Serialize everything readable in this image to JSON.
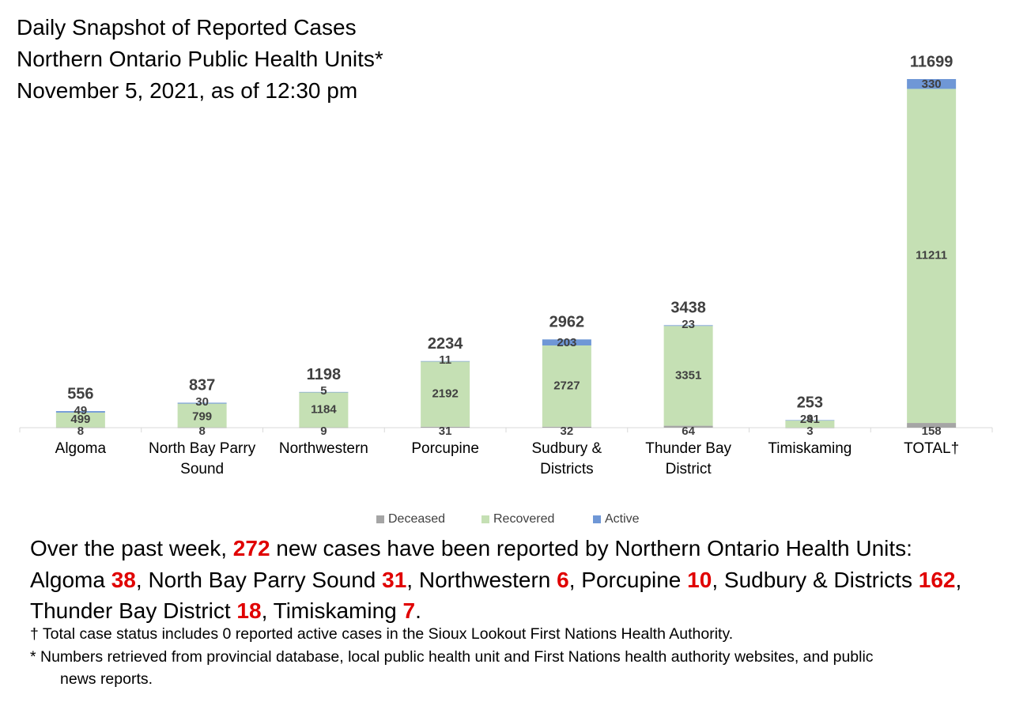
{
  "title": {
    "line1": "Daily Snapshot of Reported Cases",
    "line2": "Northern Ontario Public Health Units*",
    "line3": "November 5, 2021, as of 12:30 pm"
  },
  "chart_data": {
    "type": "bar",
    "stacked": true,
    "categories": [
      "Algoma",
      "North Bay Parry Sound",
      "Northwestern",
      "Porcupine",
      "Sudbury & Districts",
      "Thunder Bay District",
      "Timiskaming",
      "TOTAL†"
    ],
    "category_lines": [
      [
        "Algoma"
      ],
      [
        "North Bay Parry",
        "Sound"
      ],
      [
        "Northwestern"
      ],
      [
        "Porcupine"
      ],
      [
        "Sudbury &",
        "Districts"
      ],
      [
        "Thunder Bay",
        "District"
      ],
      [
        "Timiskaming"
      ],
      [
        "TOTAL†"
      ]
    ],
    "series": [
      {
        "name": "Deceased",
        "color": "#a5a5a5",
        "values": [
          8,
          8,
          9,
          31,
          32,
          64,
          3,
          158
        ]
      },
      {
        "name": "Recovered",
        "color": "#c5e0b4",
        "values": [
          499,
          799,
          1184,
          2192,
          2727,
          3351,
          241,
          11211
        ]
      },
      {
        "name": "Active",
        "color": "#6f97d6",
        "values": [
          49,
          30,
          5,
          11,
          203,
          23,
          9,
          330
        ]
      }
    ],
    "totals": [
      556,
      837,
      1198,
      2234,
      2962,
      3438,
      253,
      11699
    ],
    "legend_position": "bottom",
    "ylim": [
      0,
      11699
    ],
    "grid": false
  },
  "summary": {
    "intro": "Over the past week,",
    "total_new": "272",
    "after_total": "new cases have been reported by Northern Ontario Health Units:",
    "items": [
      {
        "name": "Algoma",
        "count": "38",
        "sep": ","
      },
      {
        "name": "North Bay Parry Sound",
        "count": "31",
        "sep": ","
      },
      {
        "name": "Northwestern",
        "count": "6",
        "sep": ","
      },
      {
        "name": "Porcupine",
        "count": "10",
        "sep": ","
      },
      {
        "name": "Sudbury & Districts",
        "count": "162",
        "sep": ","
      },
      {
        "name": "Thunder Bay District",
        "count": "18",
        "sep": ","
      },
      {
        "name": "Timiskaming",
        "count": "7",
        "sep": "."
      }
    ]
  },
  "footnotes": {
    "dagger": "† Total case status includes 0 reported active cases in the Sioux Lookout First Nations Health Authority.",
    "asterisk_line1": "* Numbers retrieved from provincial database, local public health unit and First Nations health authority websites, and public",
    "asterisk_line2": "news reports."
  }
}
